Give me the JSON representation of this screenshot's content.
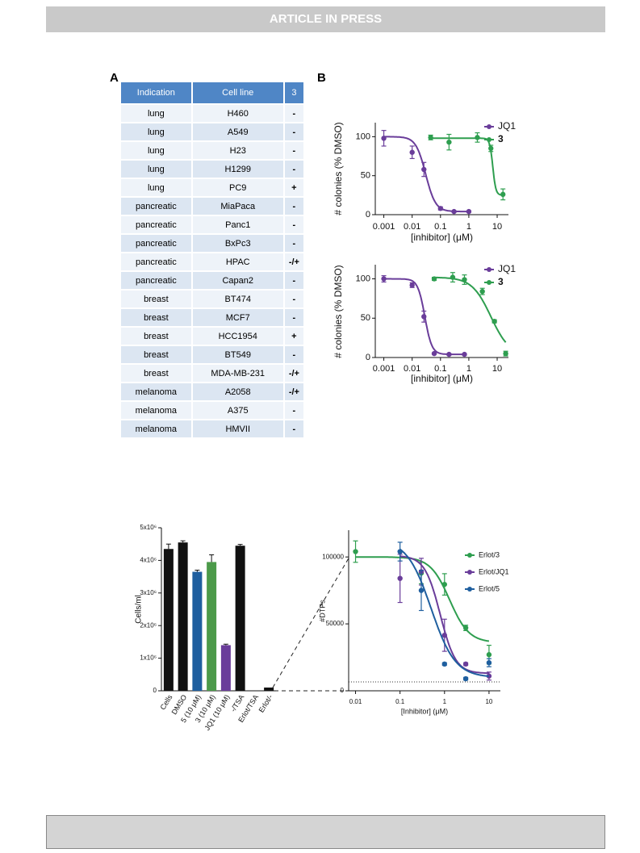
{
  "header": {
    "banner": "ARTICLE IN PRESS"
  },
  "panel_labels": [
    "A",
    "B"
  ],
  "table": {
    "columns": [
      "Indication",
      "Cell line",
      "3"
    ],
    "rows": [
      [
        "lung",
        "H460",
        "-"
      ],
      [
        "lung",
        "A549",
        "-"
      ],
      [
        "lung",
        "H23",
        "-"
      ],
      [
        "lung",
        "H1299",
        "-"
      ],
      [
        "lung",
        "PC9",
        "+"
      ],
      [
        "pancreatic",
        "MiaPaca",
        "-"
      ],
      [
        "pancreatic",
        "Panc1",
        "-"
      ],
      [
        "pancreatic",
        "BxPc3",
        "-"
      ],
      [
        "pancreatic",
        "HPAC",
        "-/+"
      ],
      [
        "pancreatic",
        "Capan2",
        "-"
      ],
      [
        "breast",
        "BT474",
        "-"
      ],
      [
        "breast",
        "MCF7",
        "-"
      ],
      [
        "breast",
        "HCC1954",
        "+"
      ],
      [
        "breast",
        "BT549",
        "-"
      ],
      [
        "breast",
        "MDA-MB-231",
        "-/+"
      ],
      [
        "melanoma",
        "A2058",
        "-/+"
      ],
      [
        "melanoma",
        "A375",
        "-"
      ],
      [
        "melanoma",
        "HMVII",
        "-"
      ]
    ]
  },
  "chart_data": [
    {
      "type": "scatter",
      "xscale": "log",
      "y_label": "# colonies (% DMSO)",
      "x_label": "[inhibitor] (μM)",
      "xlim": [
        0.0005,
        25
      ],
      "xticks": [
        0.001,
        0.01,
        0.1,
        1,
        10
      ],
      "ylim": [
        0,
        118
      ],
      "yticks": [
        0,
        50,
        100
      ],
      "series": [
        {
          "name": "JQ1",
          "color": "#6a3d9a",
          "x": [
            0.001,
            0.01,
            0.026,
            0.1,
            0.3,
            1
          ],
          "values": [
            98,
            80,
            58,
            8,
            4,
            4
          ],
          "errors": [
            10,
            8,
            9,
            2,
            1,
            1
          ],
          "fit": {
            "top": 100,
            "bottom": 4,
            "ic50": 0.03,
            "hill": 2.5
          }
        },
        {
          "name": "3",
          "color": "#2e9e4f",
          "x": [
            0.045,
            0.2,
            2,
            6,
            16
          ],
          "values": [
            99,
            93,
            99,
            85,
            26
          ],
          "errors": [
            3,
            10,
            6,
            4,
            7
          ],
          "fit": {
            "top": 98,
            "bottom": 25,
            "ic50": 7,
            "hill": 8
          }
        }
      ]
    },
    {
      "type": "scatter",
      "xscale": "log",
      "y_label": "# colonies (% DMSO)",
      "x_label": "[inhibitor] (μM)",
      "xlim": [
        0.0005,
        25
      ],
      "xticks": [
        0.001,
        0.01,
        0.1,
        1,
        10
      ],
      "ylim": [
        0,
        118
      ],
      "yticks": [
        0,
        50,
        100
      ],
      "series": [
        {
          "name": "JQ1",
          "color": "#6a3d9a",
          "x": [
            0.001,
            0.01,
            0.026,
            0.06,
            0.2,
            0.7
          ],
          "values": [
            100,
            92,
            52,
            5,
            4,
            4
          ],
          "errors": [
            4,
            3,
            7,
            1,
            1,
            1
          ],
          "fit": {
            "top": 100,
            "bottom": 4,
            "ic50": 0.028,
            "hill": 3.5
          }
        },
        {
          "name": "3",
          "color": "#2e9e4f",
          "x": [
            0.06,
            0.27,
            0.7,
            3,
            8,
            20
          ],
          "values": [
            100,
            102,
            99,
            84,
            46,
            5
          ],
          "errors": [
            2,
            6,
            6,
            4,
            2,
            3
          ],
          "fit": {
            "top": 102,
            "bottom": 2,
            "ic50": 6,
            "hill": 1.3
          }
        }
      ]
    },
    {
      "type": "bar",
      "y_label": "Cells/ml",
      "categories": [
        "Cells",
        "DMSO",
        "5 (10 μM)",
        "3 (10 μM)",
        "JQ1 (10 μM)",
        "-/TSA",
        "Erlot/TSA",
        "Erlot/-"
      ],
      "values": [
        4350000,
        4550000,
        3650000,
        3950000,
        1400000,
        4450000,
        0,
        100000
      ],
      "errors": [
        150000,
        50000,
        50000,
        220000,
        30000,
        40000,
        null,
        null
      ],
      "colors": [
        "#111111",
        "#111111",
        "#1f5f9f",
        "#4c9a4a",
        "#6a3d9a",
        "#111111",
        "#111111",
        "#111111"
      ],
      "ylim": [
        0,
        5000000
      ],
      "yticks": [
        0,
        {
          "value": 1000000,
          "label": "1x10⁶"
        },
        {
          "value": 2000000,
          "label": "2x10⁶"
        },
        {
          "value": 3000000,
          "label": "3x10⁶"
        },
        {
          "value": 4000000,
          "label": "4x10⁶"
        },
        {
          "value": 5000000,
          "label": "5x10⁶"
        }
      ]
    },
    {
      "type": "scatter",
      "xscale": "log",
      "y_label": "#DTPs",
      "x_label": "[Inhibitor] (μM)",
      "xlim": [
        0.007,
        18
      ],
      "xticks": [
        0.01,
        0.1,
        1,
        10
      ],
      "ylim": [
        0,
        120000
      ],
      "yticks": [
        0,
        50000,
        100000
      ],
      "reference_line": 6600,
      "series": [
        {
          "name": "Erlot/3",
          "color": "#2e9e4f",
          "x": [
            0.01,
            0.1,
            0.3,
            1,
            3,
            10
          ],
          "values": [
            104000,
            null,
            88000,
            79500,
            47000,
            27000
          ],
          "errors": [
            8000,
            null,
            8000,
            8000,
            2000,
            7000
          ],
          "fit": {
            "top": 100000,
            "bottom": 36000,
            "ic50": 1.3,
            "hill": 2
          }
        },
        {
          "name": "Erlot/JQ1",
          "color": "#6a3d9a",
          "x": [
            0.01,
            0.1,
            0.3,
            1,
            3,
            10
          ],
          "values": [
            null,
            84000,
            89000,
            41500,
            20000,
            11000
          ],
          "errors": [
            null,
            18000,
            10000,
            12000,
            1000,
            3000
          ],
          "fit": {
            "top": 101000,
            "bottom": 13000,
            "ic50": 0.8,
            "hill": 2.5
          }
        },
        {
          "name": "Erlot/5",
          "color": "#1f5f9f",
          "x": [
            0.01,
            0.1,
            0.3,
            1,
            3,
            10
          ],
          "values": [
            null,
            104000,
            75000,
            20000,
            9000,
            21000
          ],
          "errors": [
            null,
            7000,
            15000,
            1000,
            1000,
            3000
          ],
          "fit": {
            "top": 113000,
            "bottom": 10000,
            "ic50": 0.5,
            "hill": 1.6
          }
        }
      ]
    }
  ]
}
